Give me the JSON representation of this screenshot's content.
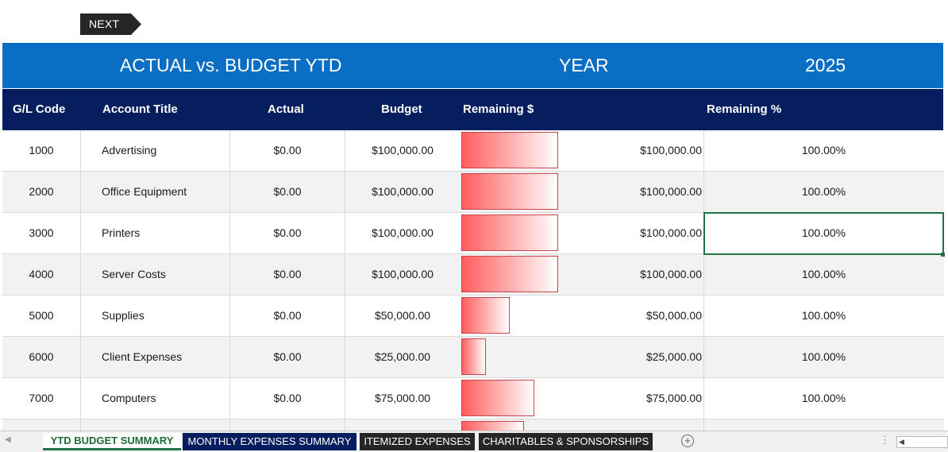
{
  "next_button": "NEXT",
  "banner": {
    "title": "ACTUAL vs. BUDGET YTD",
    "year_label": "YEAR",
    "year_value": "2025"
  },
  "headers": {
    "code": "G/L Code",
    "title": "Account Title",
    "actual": "Actual",
    "budget": "Budget",
    "remaining": "Remaining $",
    "remaining_pct": "Remaining %"
  },
  "rows": [
    {
      "code": "1000",
      "title": "Advertising",
      "actual": "$0.00",
      "budget": "$100,000.00",
      "remaining": "$100,000.00",
      "pct": "100.00%",
      "bar_fraction": 1.0
    },
    {
      "code": "2000",
      "title": "Office Equipment",
      "actual": "$0.00",
      "budget": "$100,000.00",
      "remaining": "$100,000.00",
      "pct": "100.00%",
      "bar_fraction": 1.0
    },
    {
      "code": "3000",
      "title": "Printers",
      "actual": "$0.00",
      "budget": "$100,000.00",
      "remaining": "$100,000.00",
      "pct": "100.00%",
      "bar_fraction": 1.0
    },
    {
      "code": "4000",
      "title": "Server Costs",
      "actual": "$0.00",
      "budget": "$100,000.00",
      "remaining": "$100,000.00",
      "pct": "100.00%",
      "bar_fraction": 1.0
    },
    {
      "code": "5000",
      "title": "Supplies",
      "actual": "$0.00",
      "budget": "$50,000.00",
      "remaining": "$50,000.00",
      "pct": "100.00%",
      "bar_fraction": 0.5
    },
    {
      "code": "6000",
      "title": "Client Expenses",
      "actual": "$0.00",
      "budget": "$25,000.00",
      "remaining": "$25,000.00",
      "pct": "100.00%",
      "bar_fraction": 0.25
    },
    {
      "code": "7000",
      "title": "Computers",
      "actual": "$0.00",
      "budget": "$75,000.00",
      "remaining": "$75,000.00",
      "pct": "100.00%",
      "bar_fraction": 0.75
    },
    {
      "code": "",
      "title": "",
      "actual": "",
      "budget": "",
      "remaining": "",
      "pct": "",
      "bar_fraction": 0.65
    }
  ],
  "tabs": [
    {
      "label": "YTD BUDGET SUMMARY",
      "color": "#ffffff",
      "active": true
    },
    {
      "label": "MONTHLY EXPENSES SUMMARY",
      "color": "#061e5e",
      "active": false
    },
    {
      "label": "ITEMIZED EXPENSES",
      "color": "#262626",
      "active": false
    },
    {
      "label": "CHARITABLES & SPONSORSHIPS",
      "color": "#262626",
      "active": false
    }
  ],
  "icons": {
    "add_sheet": "plus-circle-icon",
    "scroll_left": "triangle-left-icon"
  },
  "colors": {
    "banner": "#0a6ec4",
    "header": "#061e5e",
    "bar_red": "#ff5c5c",
    "selection": "#217346"
  }
}
